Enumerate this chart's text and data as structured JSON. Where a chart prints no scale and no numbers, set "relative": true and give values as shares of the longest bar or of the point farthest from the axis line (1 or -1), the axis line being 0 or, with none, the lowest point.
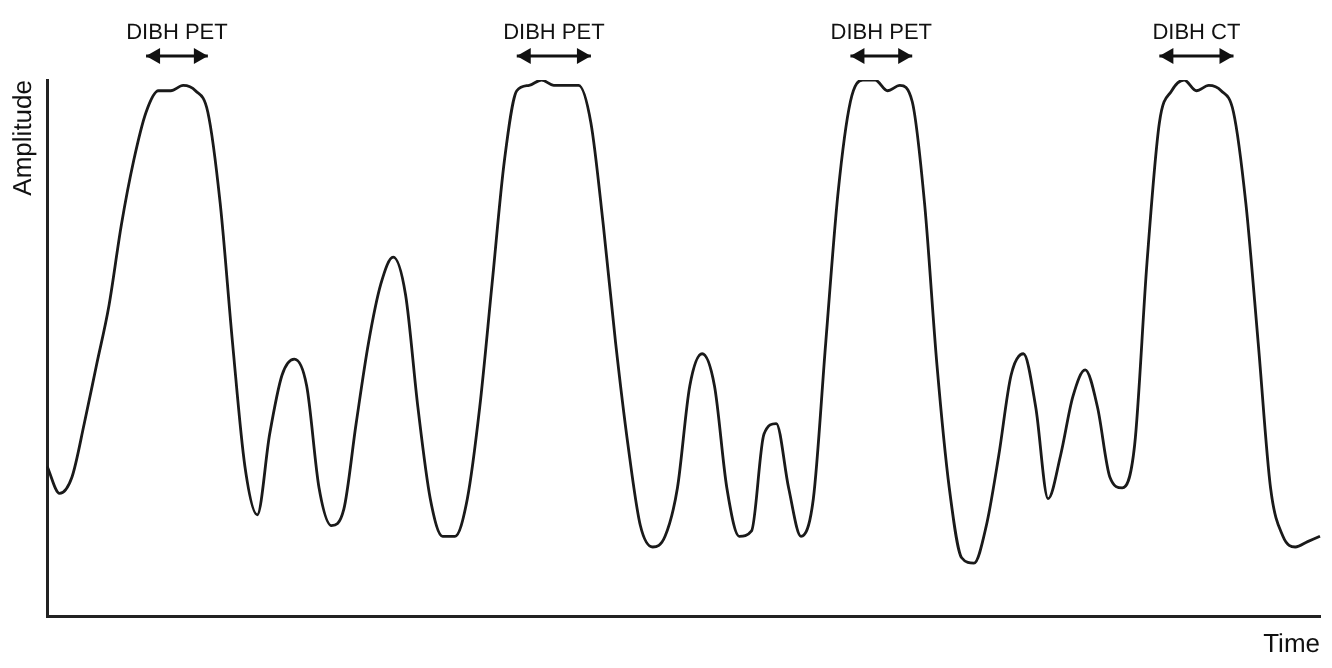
{
  "chart_data": {
    "type": "line",
    "relative": true,
    "xlabel": "Time",
    "ylabel": "Amplitude",
    "color": "#1a1a1a",
    "marker": "none",
    "line_style": "solid",
    "grid": false,
    "legend": false,
    "tick_labels": false,
    "annotations": [
      "DIBH PET",
      "DIBH PET",
      "DIBH PET",
      "DIBH CT"
    ],
    "categories": [
      null,
      null,
      null,
      null,
      null,
      null,
      null,
      null,
      null,
      null,
      null,
      null,
      null,
      null,
      null,
      null,
      null,
      null,
      null,
      null,
      null,
      null,
      null,
      null,
      null,
      null,
      null,
      null,
      null,
      null,
      null,
      null,
      null,
      null,
      null,
      null,
      null,
      null,
      null,
      null,
      null,
      null,
      null,
      null,
      null,
      null,
      null,
      null,
      null,
      null,
      null,
      null,
      null,
      null,
      null,
      null,
      null,
      null,
      null,
      null,
      null,
      null,
      null,
      null,
      null,
      null,
      null,
      null,
      null,
      null,
      null,
      null,
      null,
      null,
      null,
      null,
      null,
      null,
      null,
      null,
      null,
      null,
      null,
      null,
      null,
      null,
      null,
      null,
      null,
      null,
      null,
      null,
      null,
      null,
      null,
      null,
      null,
      null,
      null,
      null,
      null,
      null,
      null,
      null
    ],
    "values": [
      0.28,
      0.23,
      0.26,
      0.36,
      0.47,
      0.58,
      0.73,
      0.85,
      0.94,
      0.98,
      0.98,
      0.99,
      0.98,
      0.94,
      0.77,
      0.51,
      0.28,
      0.19,
      0.34,
      0.45,
      0.48,
      0.43,
      0.24,
      0.17,
      0.2,
      0.36,
      0.51,
      0.62,
      0.67,
      0.6,
      0.39,
      0.22,
      0.15,
      0.15,
      0.22,
      0.39,
      0.62,
      0.85,
      0.98,
      0.99,
      1,
      0.99,
      0.99,
      0.99,
      0.92,
      0.73,
      0.51,
      0.32,
      0.17,
      0.13,
      0.15,
      0.24,
      0.43,
      0.49,
      0.43,
      0.24,
      0.15,
      0.16,
      0.34,
      0.36,
      0.24,
      0.15,
      0.22,
      0.51,
      0.79,
      0.96,
      1,
      1,
      0.98,
      0.99,
      0.96,
      0.77,
      0.47,
      0.24,
      0.11,
      0.1,
      0.17,
      0.3,
      0.45,
      0.49,
      0.39,
      0.22,
      0.3,
      0.41,
      0.46,
      0.39,
      0.26,
      0.24,
      0.32,
      0.66,
      0.92,
      0.98,
      1,
      0.98,
      0.99,
      0.98,
      0.94,
      0.77,
      0.51,
      0.24,
      0.15,
      0.13,
      0.14,
      0.15
    ]
  }
}
